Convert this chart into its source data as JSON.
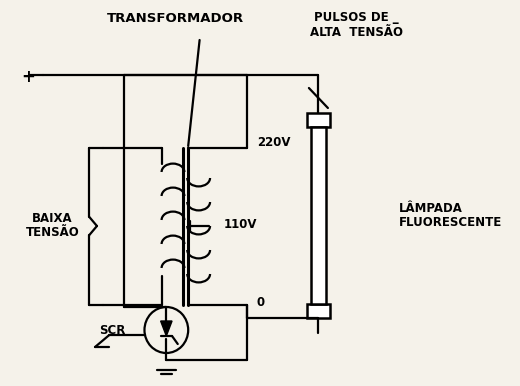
{
  "bg_color": "#f5f2ea",
  "line_color": "black",
  "labels": {
    "transformador": "TRANSFORMADOR",
    "pulsos": "PULSOS DE _\nALTA  TENSÃO",
    "baixa_tensao": "BAIXA\nTENSÃO",
    "lampada": "LÂMPADA\nFLUORESCENTE",
    "v220": "220V",
    "v110": "110V",
    "v0": "0",
    "scr": "SCR",
    "plus": "+"
  }
}
